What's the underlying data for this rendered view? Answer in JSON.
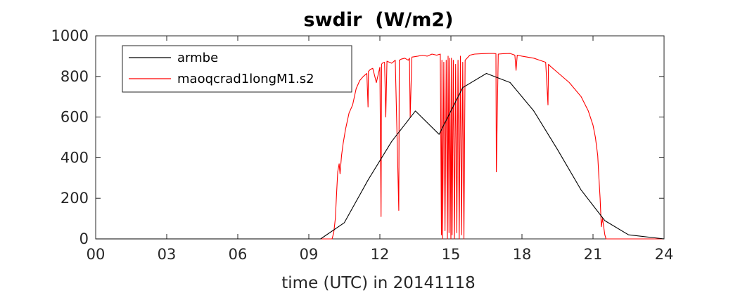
{
  "chart_data": {
    "type": "line",
    "title": "swdir  (W/m2)",
    "xlabel": "time (UTC) in 20141118",
    "ylabel": "",
    "xlim": [
      0,
      24
    ],
    "ylim": [
      0,
      1000
    ],
    "x_ticks": [
      0,
      3,
      6,
      9,
      12,
      15,
      18,
      21,
      24
    ],
    "x_tick_labels": [
      "00",
      "03",
      "06",
      "09",
      "12",
      "15",
      "18",
      "21",
      "24"
    ],
    "y_ticks": [
      0,
      200,
      400,
      600,
      800,
      1000
    ],
    "y_tick_labels": [
      "0",
      "200",
      "400",
      "600",
      "800",
      "1000"
    ],
    "grid": false,
    "legend_position": "top-left",
    "series": [
      {
        "name": "armbe",
        "color": "#000000",
        "x": [
          0,
          9.5,
          10.5,
          11.5,
          12.5,
          13.5,
          14.5,
          15.5,
          16.5,
          17.5,
          18.5,
          19.5,
          20.5,
          21.5,
          22.5,
          24
        ],
        "y": [
          0,
          0,
          80,
          290,
          480,
          630,
          515,
          745,
          815,
          770,
          630,
          440,
          240,
          90,
          20,
          0
        ]
      },
      {
        "name": "maoqcrad1longM1.s2",
        "color": "#ff0000",
        "x": [
          0,
          9.98,
          10.05,
          10.12,
          10.18,
          10.22,
          10.28,
          10.32,
          10.38,
          10.45,
          10.55,
          10.7,
          10.85,
          11.0,
          11.15,
          11.3,
          11.45,
          11.5,
          11.52,
          11.6,
          11.7,
          11.85,
          12.0,
          12.05,
          12.07,
          12.1,
          12.2,
          12.25,
          12.3,
          12.5,
          12.65,
          12.8,
          12.82,
          12.9,
          13.05,
          13.2,
          13.25,
          13.28,
          13.35,
          13.6,
          13.8,
          14.0,
          14.2,
          14.4,
          14.55,
          14.6,
          14.62,
          14.65,
          14.7,
          14.75,
          14.8,
          14.85,
          14.88,
          14.92,
          14.95,
          15.0,
          15.02,
          15.05,
          15.1,
          15.15,
          15.2,
          15.25,
          15.3,
          15.35,
          15.4,
          15.45,
          15.5,
          15.55,
          15.6,
          15.8,
          16.0,
          16.3,
          16.6,
          16.8,
          16.9,
          16.92,
          17.0,
          17.2,
          17.5,
          17.7,
          17.75,
          17.8,
          18.0,
          18.5,
          19.0,
          19.1,
          19.12,
          19.2,
          19.5,
          20.0,
          20.5,
          20.8,
          21.0,
          21.1,
          21.2,
          21.25,
          21.3,
          21.35,
          21.4,
          21.5,
          21.55,
          21.6,
          24
        ],
        "y": [
          0,
          0,
          30,
          100,
          240,
          330,
          370,
          320,
          410,
          470,
          540,
          620,
          660,
          740,
          780,
          800,
          815,
          650,
          825,
          835,
          840,
          770,
          845,
          110,
          860,
          865,
          870,
          600,
          875,
          865,
          880,
          140,
          880,
          885,
          890,
          880,
          890,
          600,
          895,
          900,
          905,
          900,
          910,
          905,
          910,
          20,
          880,
          0,
          870,
          40,
          880,
          0,
          900,
          30,
          890,
          0,
          890,
          20,
          880,
          0,
          860,
          30,
          880,
          0,
          900,
          20,
          870,
          0,
          880,
          905,
          910,
          912,
          913,
          913,
          912,
          330,
          910,
          912,
          913,
          905,
          830,
          905,
          900,
          890,
          870,
          660,
          860,
          850,
          820,
          770,
          700,
          630,
          560,
          500,
          410,
          300,
          200,
          60,
          100,
          20,
          0,
          0,
          0
        ]
      }
    ]
  }
}
